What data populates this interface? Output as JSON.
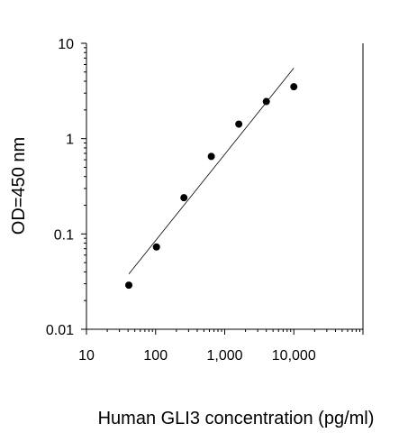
{
  "chart_data": {
    "type": "scatter",
    "title": "",
    "xlabel": "Human GLI3 concentration (pg/ml)",
    "ylabel": "OD=450 nm",
    "xscale": "log",
    "yscale": "log",
    "xlim": [
      10,
      100000
    ],
    "ylim": [
      0.01,
      10
    ],
    "x_ticks": [
      10,
      100,
      1000,
      10000
    ],
    "x_tick_labels": [
      "10",
      "100",
      "1,000",
      "10,000"
    ],
    "y_ticks": [
      0.01,
      0.1,
      1,
      10
    ],
    "y_tick_labels": [
      "0.01",
      "0.1",
      "1",
      "10"
    ],
    "grid": false,
    "legend": "none",
    "series": [
      {
        "x": [
          41,
          103,
          257,
          640,
          1600,
          4000,
          10000
        ],
        "y": [
          0.029,
          0.073,
          0.24,
          0.65,
          1.42,
          2.45,
          3.5
        ]
      }
    ],
    "fit_line": {
      "x": [
        41,
        10000
      ],
      "y": [
        0.038,
        5.5
      ]
    },
    "colors": {
      "marker": "#000000",
      "axis": "#000000",
      "fit": "#000000"
    }
  }
}
